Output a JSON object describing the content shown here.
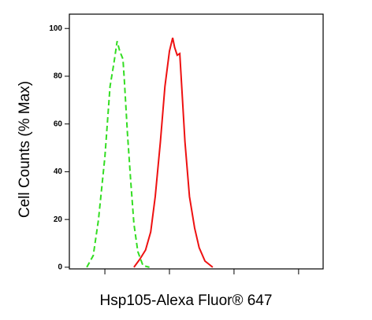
{
  "chart_data": {
    "type": "line",
    "xlabel": "Hsp105-Alexa Fluor® 647",
    "ylabel": "Cell Counts (% Max)",
    "xlim": [
      0.45,
      4.38
    ],
    "xticks": [
      1,
      2,
      3,
      4
    ],
    "ylim": [
      -0.7,
      106
    ],
    "yticks": [
      0,
      20,
      40,
      60,
      80,
      100
    ],
    "series": [
      {
        "color": "#33dd22",
        "dash": true,
        "x": [
          0.72,
          0.82,
          0.9,
          1.0,
          1.08,
          1.14,
          1.19,
          1.23,
          1.28,
          1.3,
          1.35,
          1.4,
          1.45,
          1.51,
          1.59,
          1.69
        ],
        "values": [
          0,
          4.9,
          19.7,
          46.1,
          75.7,
          85.5,
          94.7,
          90.5,
          87.2,
          79,
          55.9,
          36.2,
          18.1,
          6.6,
          0.7,
          0
        ]
      },
      {
        "color": "#ee1111",
        "dash": false,
        "x": [
          1.45,
          1.54,
          1.63,
          1.71,
          1.78,
          1.86,
          1.93,
          2.0,
          2.05,
          2.08,
          2.12,
          2.16,
          2.19,
          2.24,
          2.31,
          2.39,
          2.46,
          2.55,
          2.67
        ],
        "values": [
          0,
          3.3,
          7.2,
          14.8,
          29.6,
          52.6,
          75.7,
          90.5,
          96.1,
          92.1,
          88.8,
          89.5,
          75.7,
          52.6,
          29.6,
          16.4,
          8.2,
          2.6,
          0
        ]
      }
    ]
  }
}
